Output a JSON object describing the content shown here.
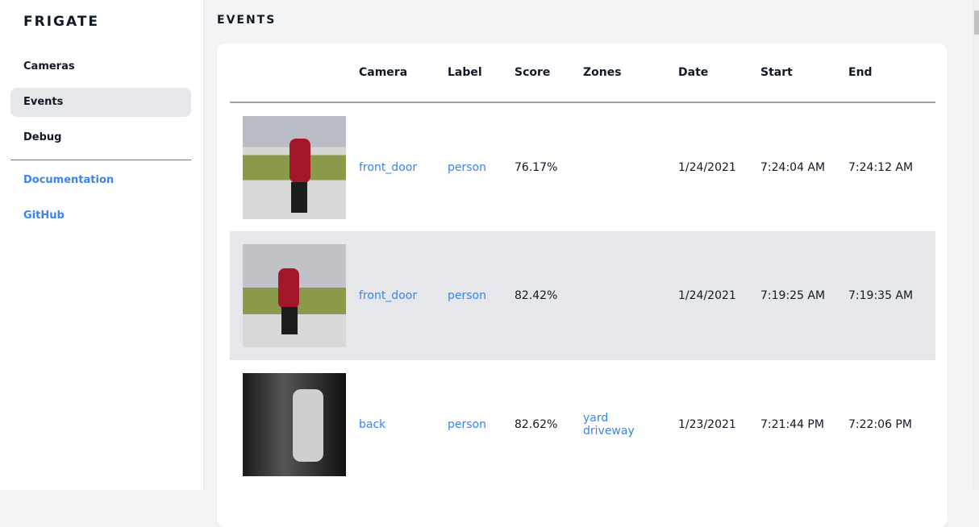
{
  "sidebar": {
    "brand": "FRIGATE",
    "items": [
      {
        "label": "Cameras"
      },
      {
        "label": "Events",
        "active": true
      },
      {
        "label": "Debug"
      }
    ],
    "links": [
      {
        "label": "Documentation"
      },
      {
        "label": "GitHub"
      }
    ]
  },
  "page": {
    "title": "EVENTS"
  },
  "table": {
    "headers": [
      "",
      "Camera",
      "Label",
      "Score",
      "Zones",
      "Date",
      "Start",
      "End"
    ],
    "rows": [
      {
        "camera": "front_door",
        "label": "person",
        "score": "76.17%",
        "zones": [
          "",
          ""
        ],
        "date": "1/24/2021",
        "start": "7:24:04 AM",
        "end": "7:24:12 AM"
      },
      {
        "camera": "front_door",
        "label": "person",
        "score": "82.42%",
        "zones": [
          "",
          ""
        ],
        "date": "1/24/2021",
        "start": "7:19:25 AM",
        "end": "7:19:35 AM"
      },
      {
        "camera": "back",
        "label": "person",
        "score": "82.62%",
        "zones": [
          "yard",
          "driveway"
        ],
        "date": "1/23/2021",
        "start": "7:21:44 PM",
        "end": "7:22:06 PM"
      }
    ]
  },
  "colors": {
    "accent": "#3b82f6",
    "active_bg": "#e5e7eb",
    "background": "#f3f4f6"
  }
}
